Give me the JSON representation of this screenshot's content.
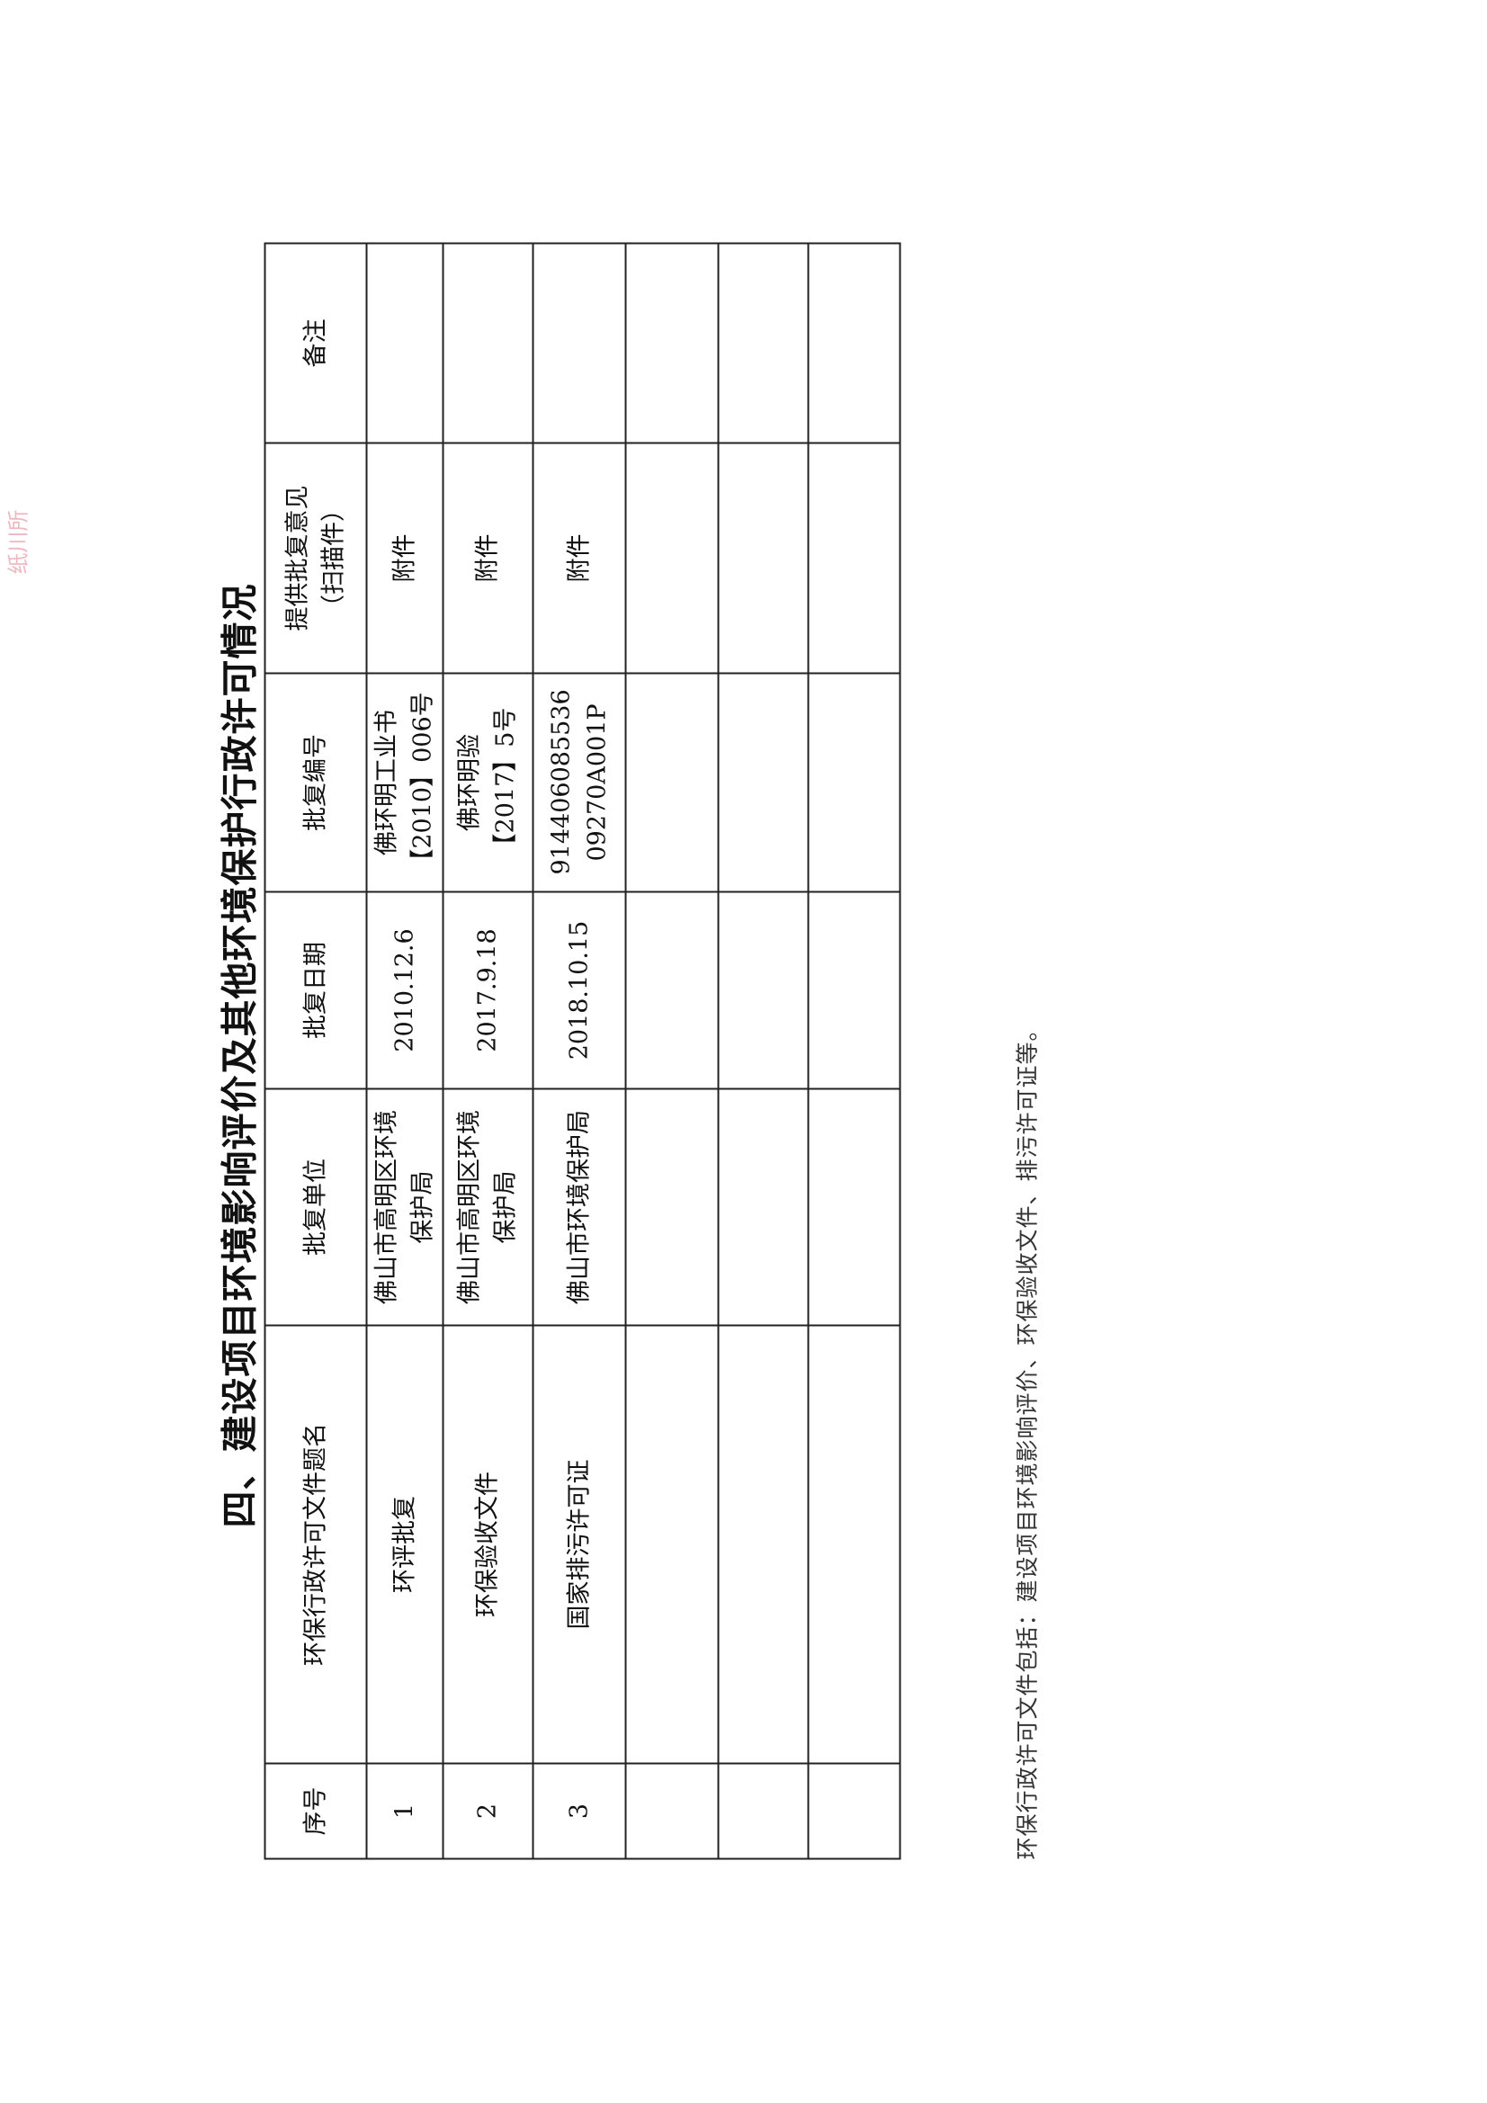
{
  "title": "四、建设项目环境影响评价及其他环境保护行政许可情况",
  "stamp_text": "纸川所",
  "table": {
    "headers": [
      "序号",
      "环保行政许可文件题名",
      "批复单位",
      "批复日期",
      "批复编号",
      "提供批复意见（扫描件）",
      "备注"
    ],
    "rows": [
      [
        "1",
        "环评批复",
        "佛山市高明区环境保护局",
        "2010.12.6",
        "佛环明工业书【2010】006号",
        "附件",
        ""
      ],
      [
        "2",
        "环保验收文件",
        "佛山市高明区环境保护局",
        "2017.9.18",
        "佛环明验【2017】5号",
        "附件",
        ""
      ],
      [
        "3",
        "国家排污许可证",
        "佛山市环境保护局",
        "2018.10.15",
        "914406085536 09270A001P",
        "附件",
        ""
      ],
      [
        "",
        "",
        "",
        "",
        "",
        "",
        ""
      ],
      [
        "",
        "",
        "",
        "",
        "",
        "",
        ""
      ],
      [
        "",
        "",
        "",
        "",
        "",
        "",
        ""
      ]
    ]
  },
  "footnote": "环保行政许可文件包括：建设项目环境影响评价、环保验收文件、排污许可证等。"
}
